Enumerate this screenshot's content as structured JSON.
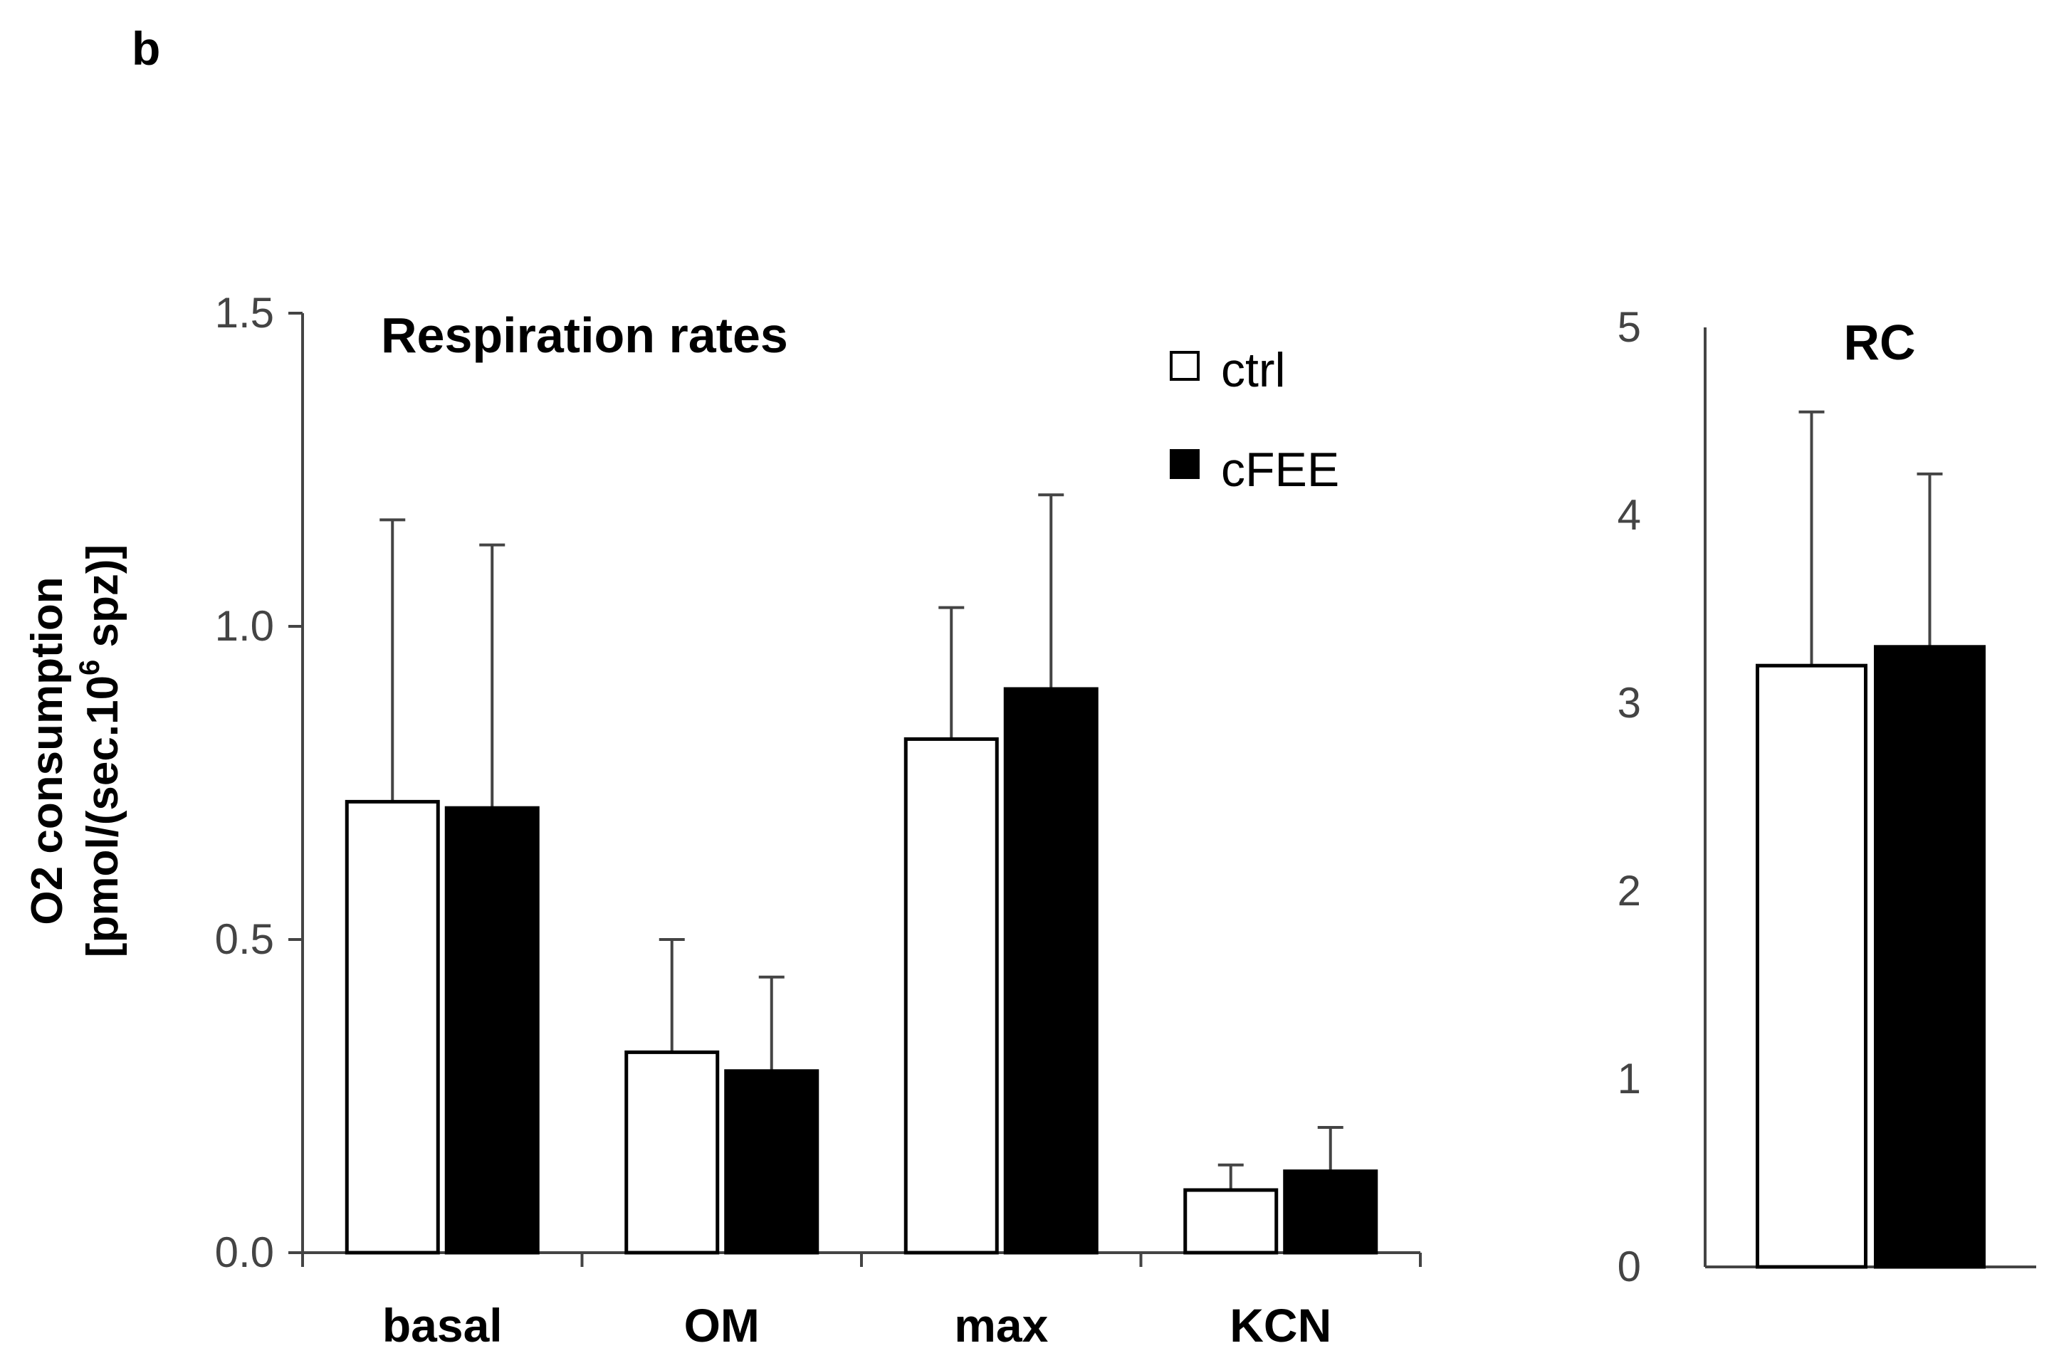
{
  "panel_label": "b",
  "chart_data": [
    {
      "type": "bar",
      "title": "Respiration rates",
      "ylabel_line1": "O2 consumption",
      "ylabel_line2": "[pmol/(sec.10",
      "ylabel_sup": "6",
      "ylabel_line2_end": " spz)]",
      "ylim": [
        0,
        1.5
      ],
      "yticks": [
        0.0,
        0.5,
        1.0,
        1.5
      ],
      "ytick_labels": [
        "0.0",
        "0.5",
        "1.0",
        "1.5"
      ],
      "categories": [
        "basal",
        "OM",
        "max",
        "KCN"
      ],
      "series": [
        {
          "name": "ctrl",
          "color": "#ffffff",
          "values": [
            0.72,
            0.32,
            0.82,
            0.1
          ],
          "errors": [
            0.45,
            0.18,
            0.21,
            0.04
          ]
        },
        {
          "name": "cFEE",
          "color": "#000000",
          "values": [
            0.71,
            0.29,
            0.9,
            0.13
          ],
          "errors": [
            0.42,
            0.15,
            0.31,
            0.07
          ]
        }
      ],
      "legend": [
        "ctrl",
        "cFEE"
      ]
    },
    {
      "type": "bar",
      "title": "RC",
      "ylim": [
        0,
        5
      ],
      "yticks": [
        0,
        1,
        2,
        3,
        4,
        5
      ],
      "ytick_labels": [
        "0",
        "1",
        "2",
        "3",
        "4",
        "5"
      ],
      "series": [
        {
          "name": "ctrl",
          "color": "#ffffff",
          "values": [
            3.2
          ],
          "errors": [
            1.35
          ]
        },
        {
          "name": "cFEE",
          "color": "#000000",
          "values": [
            3.3
          ],
          "errors": [
            0.92
          ]
        }
      ]
    }
  ]
}
